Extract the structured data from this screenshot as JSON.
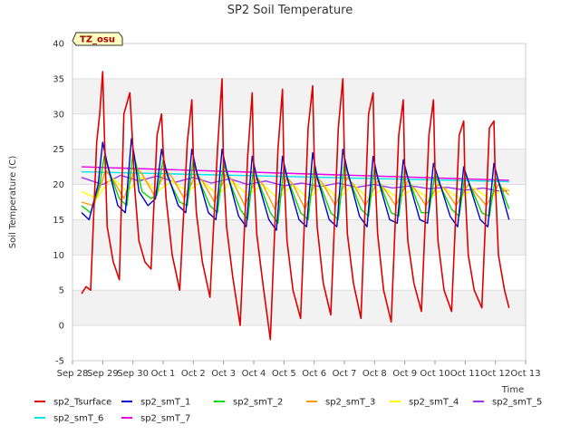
{
  "chart_data": {
    "type": "line",
    "title": "SP2 Soil Temperature",
    "xlabel": "Time",
    "ylabel": "Soil Temperature (C)",
    "ylim": [
      -5,
      40
    ],
    "yticks": [
      -5,
      0,
      5,
      10,
      15,
      20,
      25,
      30,
      35,
      40
    ],
    "xlim": [
      0,
      15
    ],
    "xticks": [
      {
        "pos": 0,
        "label": "Sep 28"
      },
      {
        "pos": 1,
        "label": "Sep 29"
      },
      {
        "pos": 2,
        "label": "Sep 30"
      },
      {
        "pos": 3,
        "label": "Oct 1"
      },
      {
        "pos": 4,
        "label": "Oct 2"
      },
      {
        "pos": 5,
        "label": "Oct 3"
      },
      {
        "pos": 6,
        "label": "Oct 4"
      },
      {
        "pos": 7,
        "label": "Oct 5"
      },
      {
        "pos": 8,
        "label": "Oct 6"
      },
      {
        "pos": 9,
        "label": "Oct 7"
      },
      {
        "pos": 10,
        "label": "Oct 8"
      },
      {
        "pos": 11,
        "label": "Oct 9"
      },
      {
        "pos": 12,
        "label": "Oct 10"
      },
      {
        "pos": 13,
        "label": "Oct 11"
      },
      {
        "pos": 14,
        "label": "Oct 12"
      },
      {
        "pos": 15,
        "label": "Oct 13"
      }
    ],
    "grid": "horizontal bands",
    "tag": "TZ_osu",
    "series": [
      {
        "name": "sp2_Tsurface",
        "color": "#dd0000",
        "x": [
          0.3,
          0.45,
          0.6,
          0.8,
          0.9,
          1.0,
          1.05,
          1.15,
          1.35,
          1.55,
          1.7,
          1.9,
          2.0,
          2.05,
          2.2,
          2.4,
          2.6,
          2.8,
          2.95,
          3.0,
          3.1,
          3.3,
          3.55,
          3.8,
          3.95,
          4.0,
          4.1,
          4.3,
          4.55,
          4.8,
          4.95,
          5.0,
          5.1,
          5.3,
          5.55,
          5.8,
          5.95,
          6.0,
          6.1,
          6.3,
          6.55,
          6.8,
          6.95,
          7.0,
          7.1,
          7.3,
          7.55,
          7.8,
          7.95,
          8.0,
          8.1,
          8.3,
          8.55,
          8.8,
          8.95,
          9.0,
          9.1,
          9.3,
          9.55,
          9.8,
          9.95,
          10.0,
          10.1,
          10.3,
          10.55,
          10.8,
          10.95,
          11.0,
          11.1,
          11.3,
          11.55,
          11.8,
          11.95,
          12.0,
          12.1,
          12.3,
          12.55,
          12.8,
          12.95,
          13.0,
          13.1,
          13.3,
          13.55,
          13.8,
          13.95,
          14.0,
          14.1,
          14.3,
          14.45
        ],
        "values": [
          4.5,
          5.5,
          5.0,
          26.0,
          30.0,
          36.0,
          28.0,
          14.0,
          9.0,
          6.5,
          30.0,
          33.0,
          25.0,
          20.0,
          12.0,
          9.0,
          8.0,
          27.0,
          30.0,
          25.0,
          18.0,
          10.0,
          5.0,
          26.0,
          32.0,
          24.0,
          16.0,
          9.0,
          4.0,
          25.0,
          35.0,
          22.0,
          14.0,
          7.0,
          0.0,
          24.0,
          33.0,
          22.0,
          13.0,
          6.0,
          -2.0,
          25.0,
          33.5,
          22.0,
          12.0,
          5.0,
          1.0,
          28.0,
          34.0,
          24.0,
          14.0,
          6.0,
          1.5,
          28.0,
          35.0,
          24.0,
          13.0,
          6.0,
          1.0,
          30.0,
          33.0,
          23.0,
          13.0,
          5.0,
          0.5,
          27.0,
          32.0,
          21.0,
          12.0,
          6.0,
          2.0,
          27.0,
          32.0,
          22.0,
          12.0,
          5.0,
          2.0,
          27.0,
          29.0,
          19.0,
          10.0,
          5.0,
          2.5,
          28.0,
          29.0,
          20.0,
          10.0,
          5.0,
          2.5
        ]
      },
      {
        "name": "sp2_smT_1",
        "color": "#0000cc",
        "x": [
          0.3,
          0.55,
          0.85,
          1.0,
          1.15,
          1.5,
          1.75,
          1.95,
          2.05,
          2.2,
          2.5,
          2.75,
          2.95,
          3.1,
          3.5,
          3.75,
          3.95,
          4.1,
          4.5,
          4.75,
          4.95,
          5.1,
          5.5,
          5.75,
          5.95,
          6.1,
          6.5,
          6.75,
          6.95,
          7.1,
          7.5,
          7.75,
          7.95,
          8.1,
          8.5,
          8.75,
          8.95,
          9.1,
          9.5,
          9.75,
          9.95,
          10.1,
          10.5,
          10.75,
          10.95,
          11.1,
          11.5,
          11.75,
          11.95,
          12.1,
          12.5,
          12.75,
          12.95,
          13.1,
          13.5,
          13.75,
          13.95,
          14.1,
          14.45
        ],
        "values": [
          16.0,
          15.0,
          20.0,
          26.0,
          23.0,
          17.0,
          16.0,
          26.5,
          24.0,
          19.0,
          17.0,
          18.0,
          25.0,
          22.0,
          17.0,
          16.0,
          25.0,
          22.0,
          16.0,
          15.0,
          25.0,
          22.0,
          15.5,
          14.0,
          24.0,
          21.0,
          15.0,
          13.5,
          24.0,
          21.0,
          15.0,
          14.0,
          24.5,
          21.0,
          15.0,
          14.0,
          25.0,
          22.0,
          15.5,
          14.0,
          24.0,
          21.0,
          15.0,
          14.5,
          23.5,
          21.0,
          15.0,
          14.5,
          23.0,
          21.0,
          15.5,
          14.0,
          22.5,
          20.5,
          15.0,
          14.0,
          23.0,
          20.5,
          15.0
        ]
      },
      {
        "name": "sp2_smT_2",
        "color": "#00dd00",
        "x": [
          0.3,
          0.6,
          0.9,
          1.05,
          1.2,
          1.55,
          1.8,
          2.0,
          2.1,
          2.3,
          2.6,
          2.8,
          3.0,
          3.15,
          3.55,
          3.8,
          4.0,
          4.15,
          4.55,
          4.8,
          5.0,
          5.15,
          5.55,
          5.8,
          6.0,
          6.15,
          6.55,
          6.8,
          7.0,
          7.15,
          7.55,
          7.8,
          8.0,
          8.15,
          8.55,
          8.8,
          9.0,
          9.15,
          9.55,
          9.8,
          10.0,
          10.15,
          10.55,
          10.8,
          11.0,
          11.15,
          11.55,
          11.8,
          12.0,
          12.15,
          12.55,
          12.8,
          13.0,
          13.15,
          13.55,
          13.8,
          14.0,
          14.15,
          14.45
        ],
        "values": [
          17.0,
          16.0,
          20.0,
          24.0,
          22.0,
          18.0,
          17.0,
          24.5,
          23.0,
          19.0,
          18.0,
          18.5,
          23.5,
          21.0,
          17.5,
          17.0,
          23.5,
          21.0,
          17.0,
          16.0,
          23.0,
          21.0,
          16.5,
          15.0,
          22.5,
          20.5,
          16.0,
          14.5,
          22.5,
          20.5,
          16.0,
          15.0,
          22.5,
          20.5,
          16.0,
          15.0,
          23.0,
          21.0,
          16.5,
          15.5,
          22.5,
          20.5,
          16.0,
          15.5,
          22.0,
          20.5,
          16.0,
          16.0,
          21.5,
          20.0,
          16.5,
          15.5,
          21.5,
          20.0,
          16.0,
          15.5,
          21.0,
          20.0,
          16.5
        ]
      },
      {
        "name": "sp2_smT_3",
        "color": "#ff9900",
        "x": [
          0.3,
          0.7,
          1.1,
          1.3,
          1.7,
          2.1,
          2.3,
          2.7,
          3.1,
          3.3,
          3.7,
          4.1,
          4.3,
          4.7,
          5.1,
          5.3,
          5.7,
          6.1,
          6.3,
          6.7,
          7.1,
          7.3,
          7.7,
          8.1,
          8.3,
          8.7,
          9.1,
          9.3,
          9.7,
          10.1,
          10.3,
          10.7,
          11.1,
          11.3,
          11.7,
          12.1,
          12.3,
          12.7,
          13.1,
          13.3,
          13.7,
          14.1,
          14.45
        ],
        "values": [
          17.5,
          17.0,
          22.0,
          21.0,
          18.0,
          22.5,
          21.5,
          18.5,
          22.0,
          21.0,
          18.0,
          21.5,
          20.5,
          17.5,
          21.5,
          20.5,
          17.0,
          21.0,
          20.0,
          16.5,
          21.0,
          20.0,
          16.5,
          21.0,
          20.0,
          17.0,
          21.0,
          20.0,
          17.0,
          20.5,
          19.5,
          17.0,
          20.5,
          19.5,
          17.0,
          20.0,
          19.5,
          17.0,
          20.0,
          19.0,
          17.0,
          20.0,
          18.5
        ]
      },
      {
        "name": "sp2_smT_4",
        "color": "#ffff00",
        "x": [
          0.3,
          0.8,
          1.3,
          1.8,
          2.3,
          2.8,
          3.3,
          3.8,
          4.3,
          4.8,
          5.3,
          5.8,
          6.3,
          6.8,
          7.3,
          7.8,
          8.3,
          8.8,
          9.3,
          9.8,
          10.3,
          10.8,
          11.3,
          11.8,
          12.3,
          12.8,
          13.3,
          13.8,
          14.3,
          14.45
        ],
        "values": [
          19.0,
          18.0,
          21.0,
          19.0,
          21.0,
          19.0,
          20.5,
          19.0,
          20.5,
          18.5,
          20.5,
          18.5,
          20.0,
          18.0,
          20.0,
          18.0,
          20.0,
          18.0,
          20.0,
          18.0,
          19.5,
          18.0,
          19.5,
          18.0,
          19.5,
          18.0,
          19.5,
          18.0,
          19.5,
          19.0
        ]
      },
      {
        "name": "sp2_smT_5",
        "color": "#9933ff",
        "x": [
          0.3,
          1.0,
          1.6,
          2.2,
          2.8,
          3.4,
          4.0,
          4.6,
          5.2,
          5.8,
          6.4,
          7.0,
          7.6,
          8.2,
          8.8,
          9.4,
          10.0,
          10.6,
          11.2,
          11.8,
          12.4,
          13.0,
          13.6,
          14.2,
          14.45
        ],
        "values": [
          21.0,
          20.0,
          21.3,
          20.5,
          21.2,
          20.3,
          21.0,
          20.2,
          20.8,
          20.0,
          20.5,
          19.8,
          20.2,
          19.7,
          20.2,
          19.6,
          20.0,
          19.5,
          19.8,
          19.4,
          19.6,
          19.2,
          19.5,
          19.0,
          19.2
        ]
      },
      {
        "name": "sp2_smT_6",
        "color": "#00e5e5",
        "x": [
          0.3,
          14.45
        ],
        "values": [
          21.8,
          20.4
        ]
      },
      {
        "name": "sp2_smT_7",
        "color": "#e600e6",
        "x": [
          0.3,
          14.45
        ],
        "values": [
          22.5,
          20.6
        ]
      }
    ]
  }
}
